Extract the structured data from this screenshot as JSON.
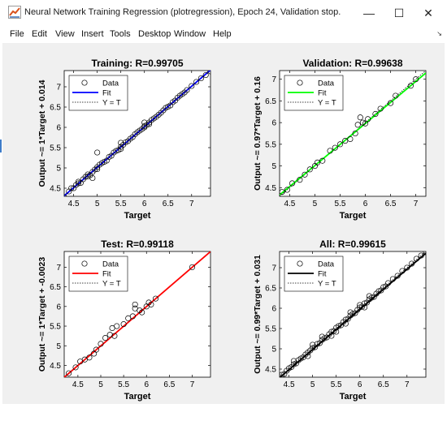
{
  "window": {
    "title": "Neural Network Training Regression (plotregression), Epoch 24, Validation stop.",
    "minimize": "—",
    "maximize": "☐",
    "close": "✕"
  },
  "menu": [
    "File",
    "Edit",
    "View",
    "Insert",
    "Tools",
    "Desktop",
    "Window",
    "Help"
  ],
  "colors": {
    "training": "#0000ff",
    "validation": "#00ff00",
    "test": "#ff0000",
    "all": "#000000"
  },
  "chart_data": [
    {
      "type": "scatter",
      "title": "Training: R=0.99705",
      "xlabel": "Target",
      "ylabel": "Output ~= 1*Target + 0.014",
      "xlim": [
        4.3,
        7.4
      ],
      "ylim": [
        4.3,
        7.4
      ],
      "xticks": [
        "4.5",
        "5",
        "5.5",
        "6",
        "6.5",
        "7"
      ],
      "yticks": [
        "4.5",
        "5",
        "5.5",
        "6",
        "6.5",
        "7"
      ],
      "legend": [
        "Data",
        "Fit",
        "Y = T"
      ],
      "legend_position": "top-left",
      "fit_color": "#0000ff",
      "fit": {
        "slope": 1.0,
        "intercept": 0.014
      },
      "x": [
        4.3,
        4.4,
        4.45,
        4.5,
        4.55,
        4.6,
        4.6,
        4.65,
        4.7,
        4.75,
        4.8,
        4.8,
        4.85,
        4.9,
        4.95,
        5.0,
        5.0,
        5.05,
        5.1,
        5.15,
        5.2,
        5.25,
        5.3,
        5.35,
        5.4,
        5.45,
        5.5,
        5.5,
        5.55,
        5.6,
        5.65,
        5.7,
        5.75,
        5.8,
        5.85,
        5.9,
        5.95,
        6.0,
        6.0,
        6.05,
        6.1,
        6.1,
        6.15,
        6.2,
        6.25,
        6.3,
        6.35,
        6.4,
        6.45,
        6.5,
        6.55,
        6.6,
        6.65,
        6.7,
        6.75,
        6.8,
        6.85,
        6.9,
        7.0,
        7.1,
        7.2,
        7.3,
        7.4,
        5.0,
        5.5,
        6.0,
        4.9
      ],
      "y": [
        4.28,
        4.42,
        4.5,
        4.5,
        4.58,
        4.62,
        4.66,
        4.63,
        4.72,
        4.78,
        4.84,
        4.79,
        4.82,
        4.9,
        4.96,
        5.02,
        4.97,
        5.08,
        5.12,
        5.15,
        5.18,
        5.27,
        5.3,
        5.38,
        5.42,
        5.44,
        5.52,
        5.47,
        5.57,
        5.63,
        5.66,
        5.72,
        5.76,
        5.83,
        5.88,
        5.92,
        5.96,
        6.03,
        6.0,
        6.06,
        6.12,
        6.08,
        6.18,
        6.22,
        6.26,
        6.31,
        6.36,
        6.42,
        6.48,
        6.51,
        6.54,
        6.62,
        6.66,
        6.73,
        6.78,
        6.82,
        6.86,
        6.92,
        7.02,
        7.12,
        7.21,
        7.29,
        7.38,
        5.38,
        5.62,
        6.12,
        4.75
      ]
    },
    {
      "type": "scatter",
      "title": "Validation: R=0.99638",
      "xlabel": "Target",
      "ylabel": "Output ~= 0.97*Target + 0.16",
      "xlim": [
        4.3,
        7.2
      ],
      "ylim": [
        4.3,
        7.2
      ],
      "xticks": [
        "4.5",
        "5",
        "5.5",
        "6",
        "6.5",
        "7"
      ],
      "yticks": [
        "4.5",
        "5",
        "5.5",
        "6",
        "6.5",
        "7"
      ],
      "legend": [
        "Data",
        "Fit",
        "Y = T"
      ],
      "legend_position": "top-left",
      "fit_color": "#00ff00",
      "fit": {
        "slope": 0.97,
        "intercept": 0.16
      },
      "x": [
        4.35,
        4.45,
        4.55,
        4.7,
        4.8,
        4.9,
        5.0,
        5.05,
        5.15,
        5.3,
        5.4,
        5.5,
        5.6,
        5.7,
        5.8,
        5.85,
        5.9,
        5.95,
        6.0,
        6.05,
        6.2,
        6.3,
        6.5,
        6.6,
        6.9,
        7.0
      ],
      "y": [
        4.4,
        4.45,
        4.6,
        4.68,
        4.8,
        4.92,
        5.0,
        5.08,
        5.12,
        5.35,
        5.42,
        5.5,
        5.58,
        5.62,
        5.75,
        5.95,
        6.12,
        6.0,
        5.98,
        6.08,
        6.2,
        6.32,
        6.45,
        6.62,
        6.85,
        7.0
      ]
    },
    {
      "type": "scatter",
      "title": "Test: R=0.99118",
      "xlabel": "Target",
      "ylabel": "Output ~= 1*Target + -0.0023",
      "xlim": [
        4.2,
        7.4
      ],
      "ylim": [
        4.2,
        7.4
      ],
      "xticks": [
        "4.5",
        "5",
        "5.5",
        "6",
        "6.5",
        "7"
      ],
      "yticks": [
        "4.5",
        "5",
        "5.5",
        "6",
        "6.5",
        "7"
      ],
      "legend": [
        "Data",
        "Fit",
        "Y = T"
      ],
      "legend_position": "top-left",
      "fit_color": "#ff0000",
      "fit": {
        "slope": 1.0,
        "intercept": -0.0023
      },
      "x": [
        4.3,
        4.45,
        4.55,
        4.65,
        4.75,
        4.85,
        4.9,
        5.0,
        5.1,
        5.2,
        5.3,
        5.35,
        5.5,
        5.6,
        5.7,
        5.75,
        5.85,
        5.9,
        6.0,
        6.05,
        6.1,
        6.2,
        7.0,
        5.25,
        5.75
      ],
      "y": [
        4.3,
        4.45,
        4.6,
        4.65,
        4.7,
        4.8,
        4.9,
        5.05,
        5.2,
        5.28,
        5.25,
        5.5,
        5.55,
        5.7,
        5.75,
        6.05,
        5.9,
        5.85,
        6.0,
        6.1,
        6.05,
        6.2,
        7.0,
        5.45,
        5.95
      ]
    },
    {
      "type": "scatter",
      "title": "All: R=0.99615",
      "xlabel": "Target",
      "ylabel": "Output ~= 0.99*Target + 0.031",
      "xlim": [
        4.3,
        7.4
      ],
      "ylim": [
        4.3,
        7.4
      ],
      "xticks": [
        "4.5",
        "5",
        "5.5",
        "6",
        "6.5",
        "7"
      ],
      "yticks": [
        "4.5",
        "5",
        "5.5",
        "6",
        "6.5",
        "7"
      ],
      "legend": [
        "Data",
        "Fit",
        "Y = T"
      ],
      "legend_position": "top-left",
      "fit_color": "#000000",
      "fit": {
        "slope": 0.99,
        "intercept": 0.031
      },
      "x": [
        4.3,
        4.35,
        4.4,
        4.45,
        4.5,
        4.55,
        4.6,
        4.65,
        4.7,
        4.75,
        4.8,
        4.85,
        4.9,
        4.95,
        5.0,
        5.05,
        5.1,
        5.15,
        5.2,
        5.25,
        5.3,
        5.35,
        5.4,
        5.45,
        5.5,
        5.55,
        5.6,
        5.65,
        5.7,
        5.75,
        5.8,
        5.85,
        5.9,
        5.95,
        6.0,
        6.05,
        6.1,
        6.15,
        6.2,
        6.25,
        6.3,
        6.35,
        6.4,
        6.45,
        6.5,
        6.55,
        6.6,
        6.7,
        6.8,
        6.9,
        7.0,
        7.1,
        7.2,
        7.3,
        7.4,
        5.0,
        5.5,
        6.0,
        5.2,
        5.8,
        4.6,
        6.2,
        5.4,
        4.9,
        5.7,
        6.1
      ],
      "y": [
        4.3,
        4.36,
        4.38,
        4.46,
        4.52,
        4.55,
        4.62,
        4.64,
        4.72,
        4.76,
        4.79,
        4.86,
        4.91,
        4.96,
        5.02,
        5.04,
        5.12,
        5.14,
        5.22,
        5.26,
        5.28,
        5.36,
        5.42,
        5.44,
        5.52,
        5.56,
        5.58,
        5.66,
        5.72,
        5.74,
        5.82,
        5.86,
        5.88,
        5.96,
        6.02,
        6.04,
        6.12,
        6.14,
        6.22,
        6.26,
        6.28,
        6.36,
        6.42,
        6.44,
        6.52,
        6.54,
        6.62,
        6.72,
        6.8,
        6.92,
        7.0,
        7.1,
        7.22,
        7.3,
        7.38,
        5.1,
        5.42,
        6.08,
        5.3,
        5.9,
        4.7,
        6.3,
        5.32,
        4.82,
        5.62,
        6.02
      ]
    }
  ]
}
